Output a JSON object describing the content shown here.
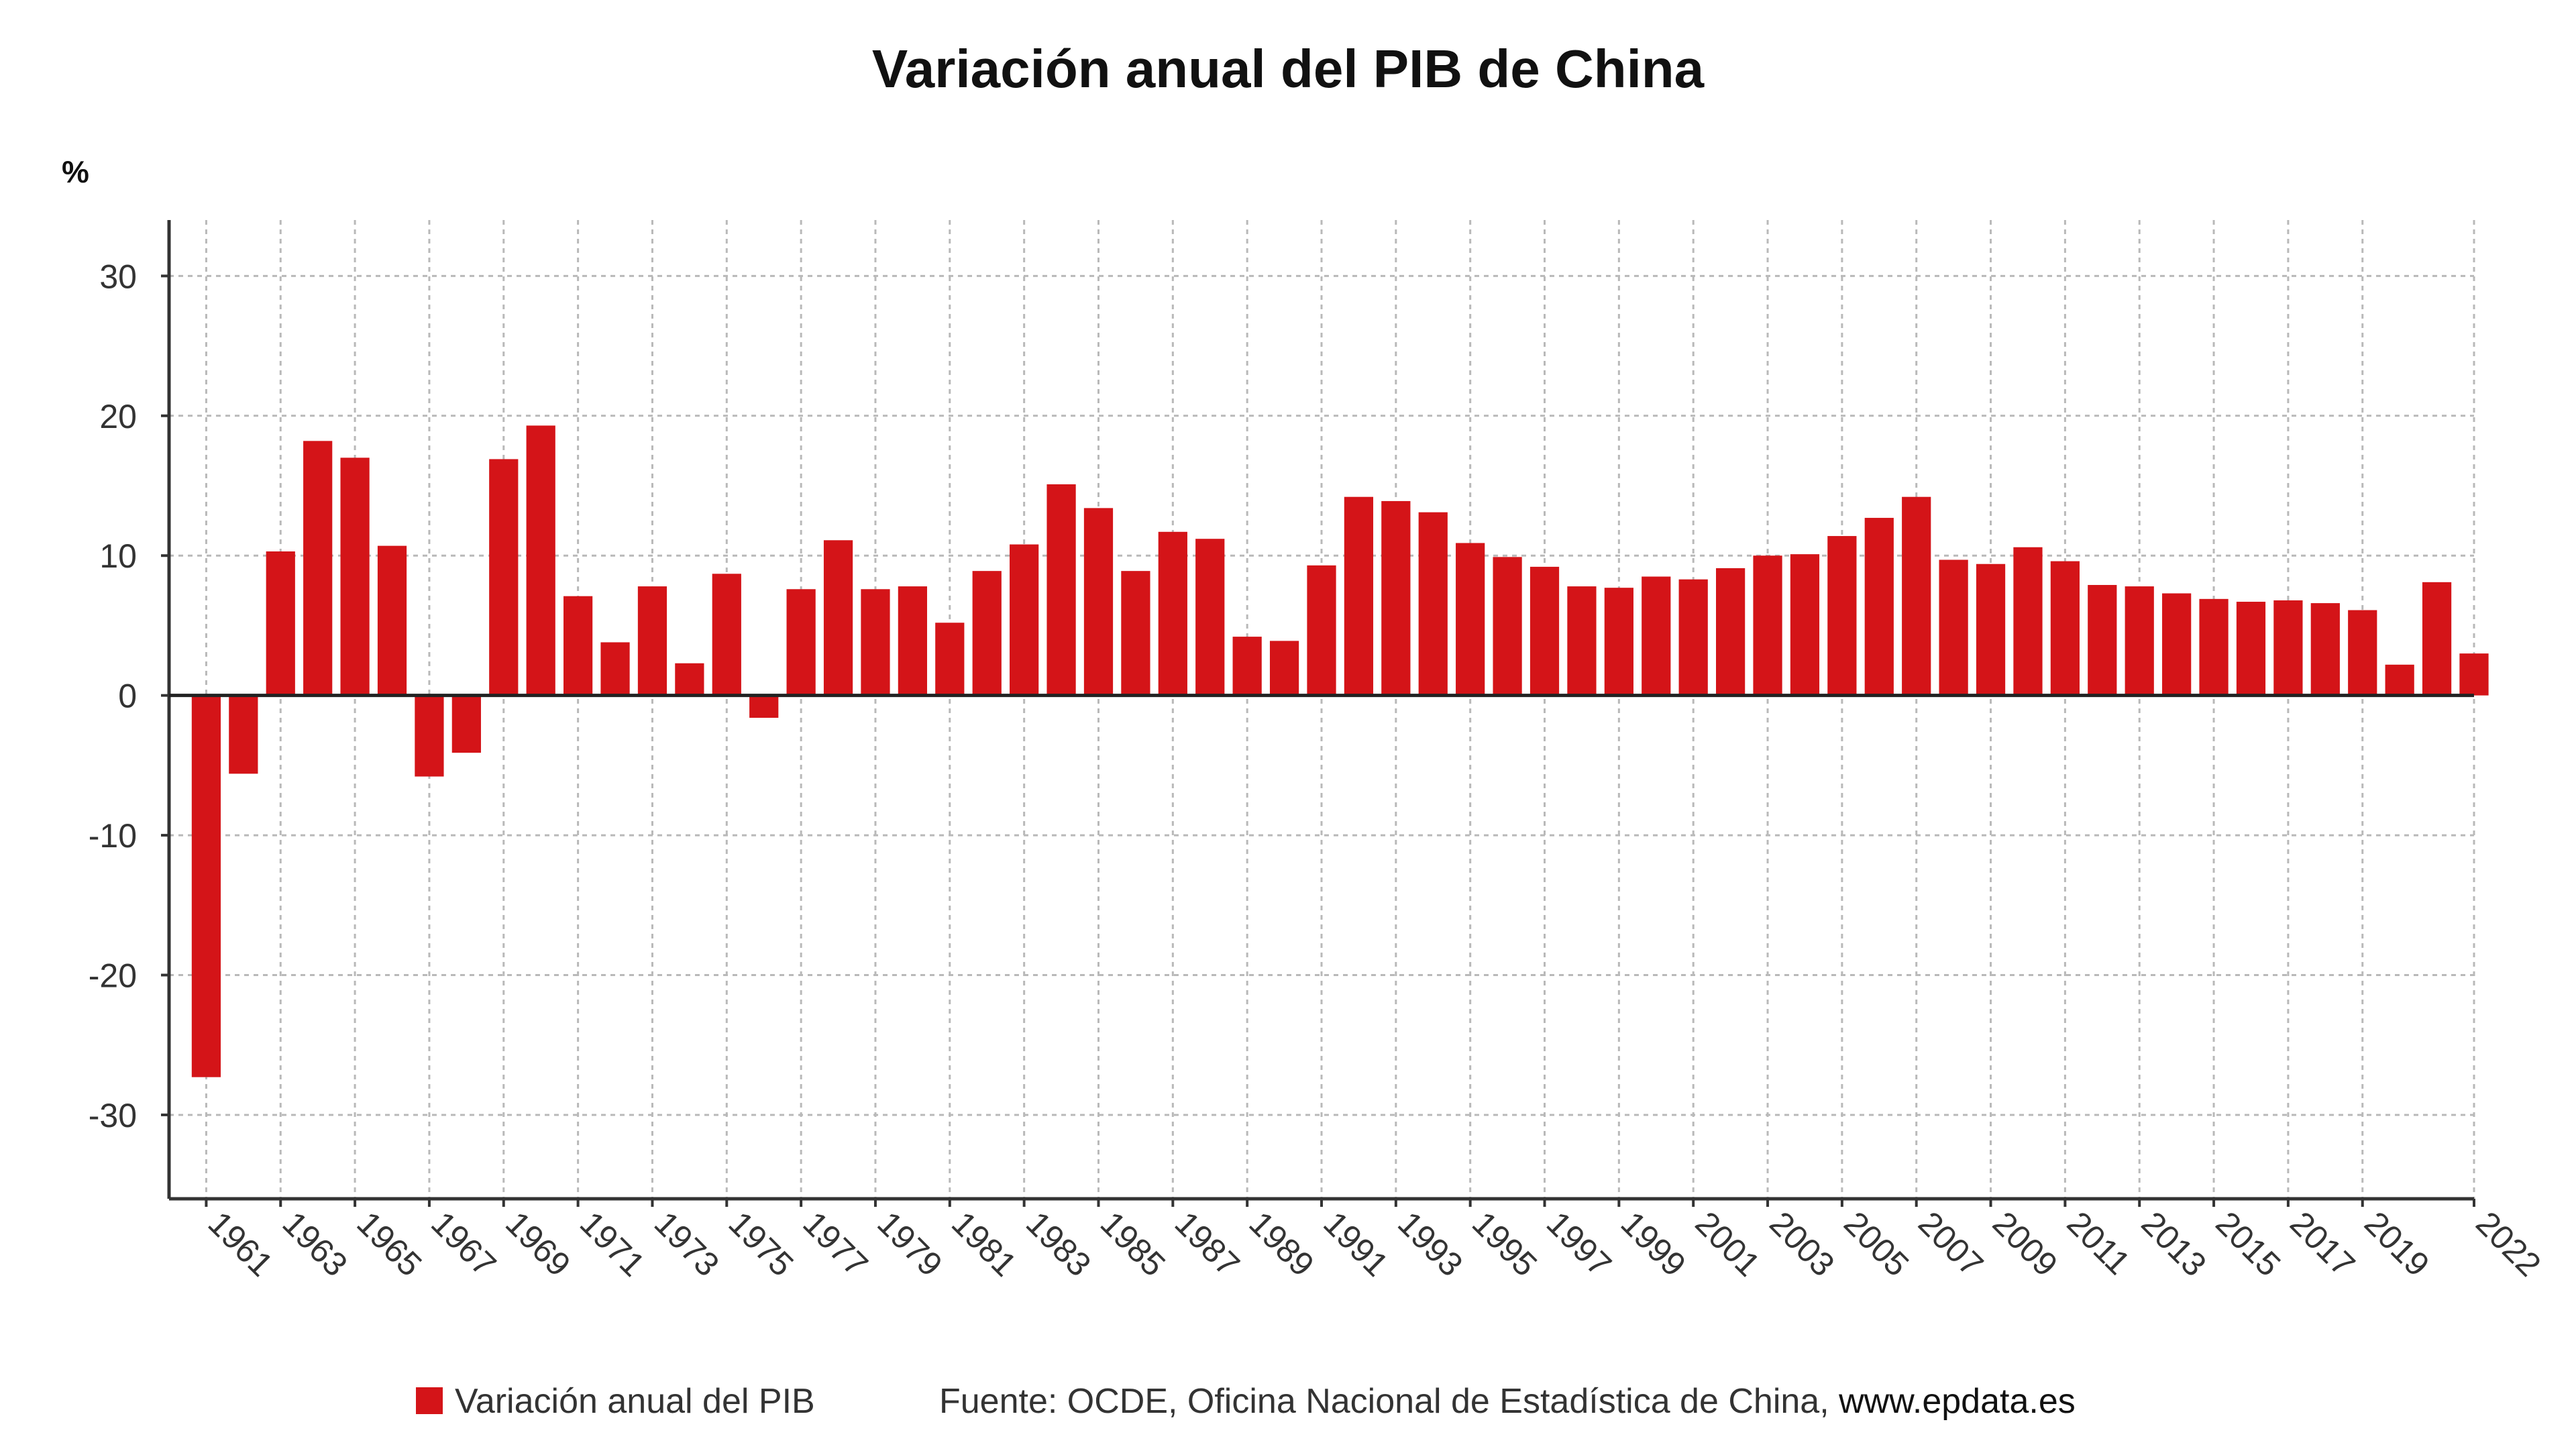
{
  "chart_data": {
    "type": "bar",
    "title": "Variación anual del PIB de China",
    "unit": "%",
    "ylim": [
      -36,
      34
    ],
    "yticks": [
      30,
      20,
      10,
      0,
      -10,
      -20,
      -30
    ],
    "ytick_labels": [
      "30",
      "20",
      "10",
      "0",
      "-10",
      "-20",
      "-30"
    ],
    "grid": true,
    "x": [
      1961,
      1962,
      1963,
      1964,
      1965,
      1966,
      1967,
      1968,
      1969,
      1970,
      1971,
      1972,
      1973,
      1974,
      1975,
      1976,
      1977,
      1978,
      1979,
      1980,
      1981,
      1982,
      1983,
      1984,
      1985,
      1986,
      1987,
      1988,
      1989,
      1990,
      1991,
      1992,
      1993,
      1994,
      1995,
      1996,
      1997,
      1998,
      1999,
      2000,
      2001,
      2002,
      2003,
      2004,
      2005,
      2006,
      2007,
      2008,
      2009,
      2010,
      2011,
      2012,
      2013,
      2014,
      2015,
      2016,
      2017,
      2018,
      2019,
      2020,
      2021,
      2022
    ],
    "x_tick_labels": [
      "1961",
      "1963",
      "1965",
      "1967",
      "1969",
      "1971",
      "1973",
      "1975",
      "1977",
      "1979",
      "1981",
      "1983",
      "1985",
      "1987",
      "1989",
      "1991",
      "1993",
      "1995",
      "1997",
      "1999",
      "2001",
      "2003",
      "2005",
      "2007",
      "2009",
      "2011",
      "2013",
      "2015",
      "2017",
      "2019",
      "2022"
    ],
    "series": [
      {
        "name": "Variación anual del PIB",
        "color": "#d41418",
        "values": [
          -27.3,
          -5.6,
          10.3,
          18.2,
          17.0,
          10.7,
          -5.8,
          -4.1,
          16.9,
          19.3,
          7.1,
          3.8,
          7.8,
          2.3,
          8.7,
          -1.6,
          7.6,
          11.1,
          7.6,
          7.8,
          5.2,
          8.9,
          10.8,
          15.1,
          13.4,
          8.9,
          11.7,
          11.2,
          4.2,
          3.9,
          9.3,
          14.2,
          13.9,
          13.1,
          10.9,
          9.9,
          9.2,
          7.8,
          7.7,
          8.5,
          8.3,
          9.1,
          10.0,
          10.1,
          11.4,
          12.7,
          14.2,
          9.7,
          9.4,
          10.6,
          9.6,
          7.9,
          7.8,
          7.3,
          6.9,
          6.7,
          6.8,
          6.6,
          6.1,
          2.2,
          8.1,
          3.0
        ]
      }
    ],
    "legend": {
      "label": "Variación anual del PIB",
      "placement": "bottom"
    },
    "source": {
      "prefix": "Fuente: OCDE, Oficina Nacional de Estadística de China, ",
      "link": "www.epdata.es"
    }
  }
}
